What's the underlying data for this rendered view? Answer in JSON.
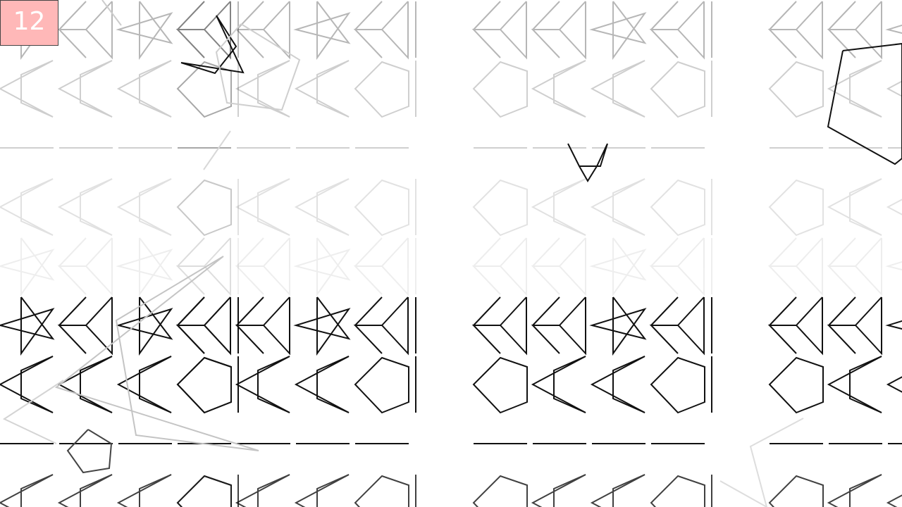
{
  "hud": {
    "score": "12",
    "score_color": "#ffb8b8"
  },
  "grid": {
    "columns": [
      "star",
      "bowtie",
      "star",
      "bowtie"
    ],
    "rows": [
      {
        "kind": "star-bowtie",
        "opacity": 0.3
      },
      {
        "kind": "chevron-pentagon",
        "opacity": 0.2
      },
      {
        "kind": "dash",
        "opacity": 0.2
      },
      {
        "kind": "chevron-pentagon",
        "opacity": 0.12
      },
      {
        "kind": "star-bowtie",
        "opacity": 0.07
      },
      {
        "kind": "star-bowtie",
        "opacity": 1.0
      },
      {
        "kind": "chevron-pentagon",
        "opacity": 1.0
      },
      {
        "kind": "dash",
        "opacity": 1.0
      },
      {
        "kind": "chevron-pentagon",
        "opacity": 0.8
      }
    ]
  },
  "colors": {
    "ink": "#111111",
    "bg": "#ffffff",
    "faded": "#bbbbbb"
  }
}
